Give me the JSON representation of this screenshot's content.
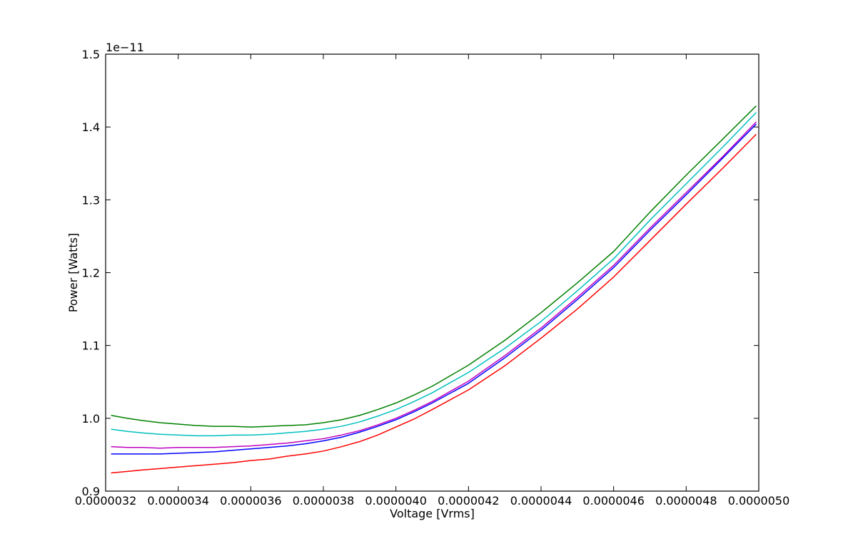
{
  "chart_data": {
    "type": "line",
    "title": "",
    "xlabel": "Voltage [Vrms]",
    "ylabel": "Power [Watts]",
    "y_offset_label": "1e−11",
    "xlim": [
      3.2e-06,
      5e-06
    ],
    "ylim": [
      0.9,
      1.5
    ],
    "y_scale_factor": 1e-11,
    "x_ticks": [
      3.2e-06,
      3.4e-06,
      3.6e-06,
      3.8e-06,
      4e-06,
      4.2e-06,
      4.4e-06,
      4.6e-06,
      4.8e-06,
      5e-06
    ],
    "x_tick_labels": [
      "0.0000032",
      "0.0000034",
      "0.0000036",
      "0.0000038",
      "0.0000040",
      "0.0000042",
      "0.0000044",
      "0.0000046",
      "0.0000048",
      "0.0000050"
    ],
    "y_ticks": [
      0.9,
      1.0,
      1.1,
      1.2,
      1.3,
      1.4,
      1.5
    ],
    "y_tick_labels": [
      "0.9",
      "1.0",
      "1.1",
      "1.2",
      "1.3",
      "1.4",
      "1.5"
    ],
    "grid": false,
    "legend": "none",
    "x": [
      3.215e-06,
      3.26e-06,
      3.3e-06,
      3.35e-06,
      3.4e-06,
      3.45e-06,
      3.5e-06,
      3.55e-06,
      3.6e-06,
      3.65e-06,
      3.7e-06,
      3.75e-06,
      3.8e-06,
      3.85e-06,
      3.9e-06,
      3.95e-06,
      4e-06,
      4.05e-06,
      4.1e-06,
      4.2e-06,
      4.3e-06,
      4.4e-06,
      4.5e-06,
      4.6e-06,
      4.7e-06,
      4.8e-06,
      4.9e-06,
      4.993e-06
    ],
    "series": [
      {
        "color": "#008000",
        "values": [
          1.004,
          1.0,
          0.997,
          0.994,
          0.992,
          0.99,
          0.989,
          0.989,
          0.988,
          0.989,
          0.99,
          0.991,
          0.994,
          0.998,
          1.004,
          1.012,
          1.021,
          1.032,
          1.044,
          1.073,
          1.107,
          1.145,
          1.186,
          1.229,
          1.283,
          1.334,
          1.383,
          1.429
        ]
      },
      {
        "color": "#00bfbf",
        "values": [
          0.985,
          0.982,
          0.98,
          0.978,
          0.977,
          0.976,
          0.976,
          0.977,
          0.977,
          0.978,
          0.98,
          0.982,
          0.985,
          0.989,
          0.995,
          1.003,
          1.012,
          1.023,
          1.035,
          1.063,
          1.096,
          1.133,
          1.175,
          1.219,
          1.272,
          1.322,
          1.372,
          1.42
        ]
      },
      {
        "color": "#bf00bf",
        "values": [
          0.961,
          0.96,
          0.96,
          0.959,
          0.96,
          0.96,
          0.96,
          0.961,
          0.962,
          0.964,
          0.966,
          0.969,
          0.972,
          0.977,
          0.983,
          0.991,
          1.0,
          1.011,
          1.023,
          1.051,
          1.086,
          1.124,
          1.166,
          1.21,
          1.261,
          1.31,
          1.359,
          1.407
        ]
      },
      {
        "color": "#0000ff",
        "values": [
          0.951,
          0.951,
          0.951,
          0.951,
          0.952,
          0.953,
          0.954,
          0.956,
          0.958,
          0.96,
          0.962,
          0.965,
          0.969,
          0.974,
          0.981,
          0.989,
          0.998,
          1.009,
          1.021,
          1.048,
          1.083,
          1.121,
          1.163,
          1.207,
          1.258,
          1.307,
          1.357,
          1.404
        ]
      },
      {
        "color": "#ff0000",
        "values": [
          0.925,
          0.927,
          0.929,
          0.931,
          0.933,
          0.935,
          0.937,
          0.939,
          0.942,
          0.944,
          0.948,
          0.951,
          0.955,
          0.961,
          0.968,
          0.977,
          0.988,
          0.999,
          1.012,
          1.039,
          1.072,
          1.11,
          1.15,
          1.194,
          1.244,
          1.294,
          1.343,
          1.39
        ]
      }
    ]
  }
}
